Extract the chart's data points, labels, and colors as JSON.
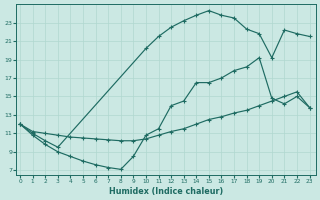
{
  "xlabel": "Humidex (Indice chaleur)",
  "bg_color": "#cbe8e3",
  "line_color": "#1e6b62",
  "grid_color": "#b0d8d0",
  "xlim": [
    -0.3,
    23.5
  ],
  "ylim": [
    6.5,
    25.0
  ],
  "yticks": [
    7,
    9,
    11,
    13,
    15,
    17,
    19,
    21,
    23
  ],
  "xticks": [
    0,
    1,
    2,
    3,
    4,
    5,
    6,
    7,
    8,
    9,
    10,
    11,
    12,
    13,
    14,
    15,
    16,
    17,
    18,
    19,
    20,
    21,
    22,
    23
  ],
  "line_top_x": [
    0,
    1,
    2,
    3,
    10,
    11,
    12,
    13,
    14,
    15,
    16,
    17,
    18,
    19,
    20,
    21,
    22,
    23
  ],
  "line_top_y": [
    12.0,
    11.0,
    10.2,
    9.5,
    20.2,
    21.5,
    22.5,
    23.2,
    23.8,
    24.3,
    23.8,
    23.5,
    22.3,
    21.8,
    19.2,
    22.2,
    21.8,
    21.5
  ],
  "line_mid_x": [
    0,
    1,
    2,
    3,
    4,
    5,
    6,
    7,
    8,
    9,
    10,
    11,
    12,
    13,
    14,
    15,
    16,
    17,
    18,
    19,
    20,
    21,
    22,
    23
  ],
  "line_mid_y": [
    12.0,
    10.8,
    9.8,
    9.0,
    8.5,
    8.0,
    7.6,
    7.3,
    7.1,
    8.5,
    10.8,
    11.5,
    14.0,
    14.5,
    16.5,
    16.5,
    17.0,
    17.8,
    18.2,
    19.2,
    14.8,
    14.2,
    15.0,
    13.8
  ],
  "line_bot_x": [
    0,
    1,
    2,
    3,
    4,
    5,
    6,
    7,
    8,
    9,
    10,
    11,
    12,
    13,
    14,
    15,
    16,
    17,
    18,
    19,
    20,
    21,
    22,
    23
  ],
  "line_bot_y": [
    12.0,
    11.2,
    11.0,
    10.8,
    10.6,
    10.5,
    10.4,
    10.3,
    10.2,
    10.2,
    10.4,
    10.8,
    11.2,
    11.5,
    12.0,
    12.5,
    12.8,
    13.2,
    13.5,
    14.0,
    14.5,
    15.0,
    15.5,
    13.8
  ]
}
